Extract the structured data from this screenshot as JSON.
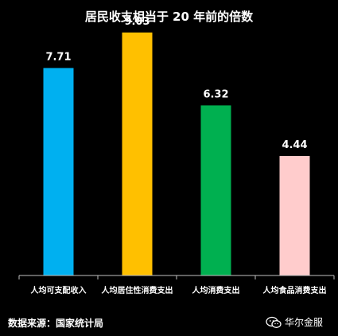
{
  "chart_data": {
    "type": "bar",
    "title": "居民收支相当于 20 年前的倍数",
    "categories": [
      "人均可支配收入",
      "人均居住性消费支出",
      "人均消费支出",
      "人均食品消费支出"
    ],
    "values": [
      7.71,
      9.03,
      6.32,
      4.44
    ],
    "value_labels": [
      "7.71",
      "9.03",
      "6.32",
      "4.44"
    ],
    "colors": [
      "#00b0f0",
      "#ffc000",
      "#00b050",
      "#ffcccc"
    ],
    "ylim": [
      0,
      10
    ],
    "grid": false,
    "xlabel": "",
    "ylabel": ""
  },
  "source_text": "数据来源：国家统计局",
  "watermark": {
    "icon": "wechat-icon",
    "text": "华尔金服"
  }
}
